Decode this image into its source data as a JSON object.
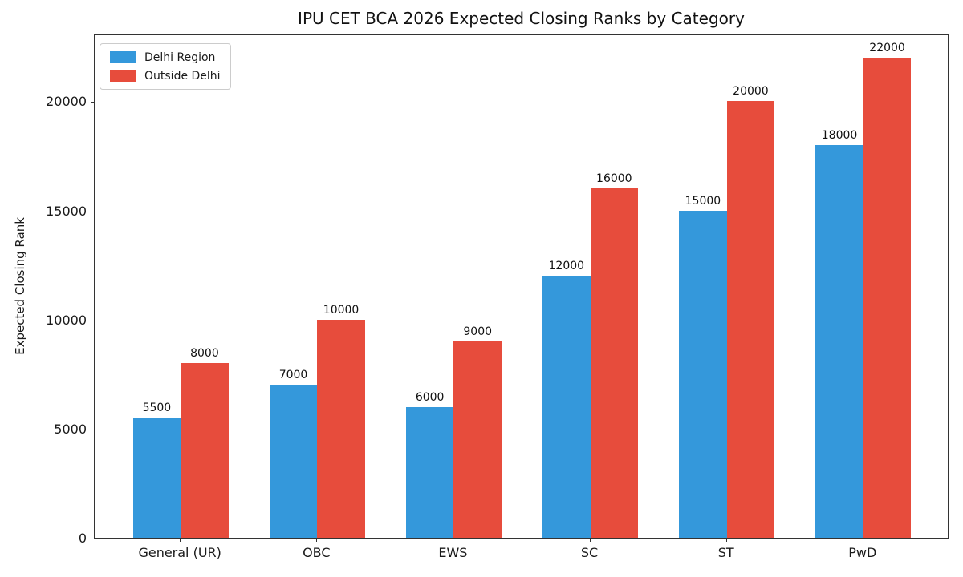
{
  "chart_data": {
    "type": "bar",
    "title": "IPU CET BCA 2026 Expected Closing Ranks by Category",
    "xlabel": "",
    "ylabel": "Expected Closing Rank",
    "categories": [
      "General (UR)",
      "OBC",
      "EWS",
      "SC",
      "ST",
      "PwD"
    ],
    "series": [
      {
        "name": "Delhi Region",
        "color": "#3498db",
        "values": [
          5500,
          7000,
          6000,
          12000,
          15000,
          18000
        ]
      },
      {
        "name": "Outside Delhi",
        "color": "#e74c3c",
        "values": [
          8000,
          10000,
          9000,
          16000,
          20000,
          22000
        ]
      }
    ],
    "yticks": [
      0,
      5000,
      10000,
      15000,
      20000
    ],
    "ylim": [
      0,
      23100
    ],
    "bar_width_units": 0.35,
    "xlim": [
      -0.63,
      5.63
    ],
    "grid": false,
    "legend_position": "upper left",
    "bar_value_labels": true
  }
}
